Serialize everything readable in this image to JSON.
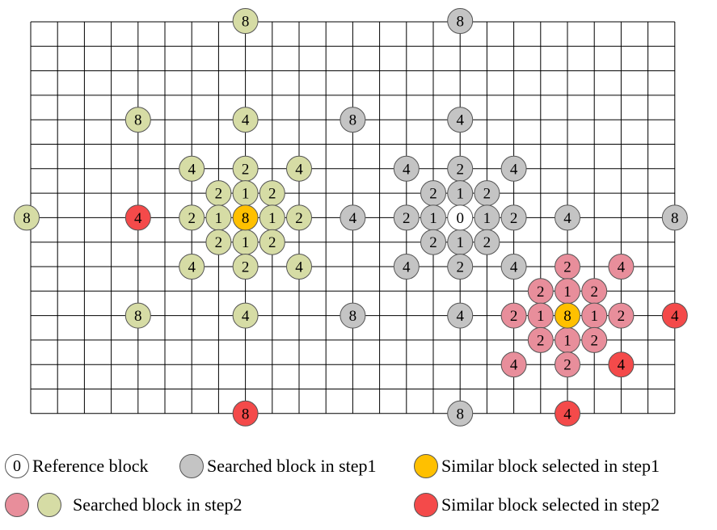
{
  "colors": {
    "reference": "#ffffff",
    "step1_searched": "#c4c4c4",
    "step1_selected": "#ffc000",
    "step2_searched_pink": "#e88e9b",
    "step2_searched_green": "#d6dca5",
    "step2_selected": "#f44a4a",
    "grid_line": "#000000"
  },
  "grid": {
    "columns": 24,
    "rows": 16
  },
  "blocks": {
    "reference": [
      {
        "col": 16,
        "row": 8,
        "label": "0"
      }
    ],
    "step1_searched": [
      {
        "col": 16,
        "row": -0.1,
        "label": "8"
      },
      {
        "col": 16,
        "row": 4,
        "label": "4"
      },
      {
        "col": 12,
        "row": 4,
        "label": "8"
      },
      {
        "col": 14,
        "row": 6,
        "label": "4"
      },
      {
        "col": 16,
        "row": 6,
        "label": "2"
      },
      {
        "col": 18,
        "row": 6,
        "label": "4"
      },
      {
        "col": 15,
        "row": 7,
        "label": "2"
      },
      {
        "col": 16,
        "row": 7,
        "label": "1"
      },
      {
        "col": 17,
        "row": 7,
        "label": "2"
      },
      {
        "col": 12,
        "row": 8,
        "label": "4"
      },
      {
        "col": 14,
        "row": 8,
        "label": "2"
      },
      {
        "col": 15,
        "row": 8,
        "label": "1"
      },
      {
        "col": 17,
        "row": 8,
        "label": "1"
      },
      {
        "col": 18,
        "row": 8,
        "label": "2"
      },
      {
        "col": 20,
        "row": 8,
        "label": "4"
      },
      {
        "col": 24,
        "row": 8,
        "label": "8"
      },
      {
        "col": 15,
        "row": 9,
        "label": "2"
      },
      {
        "col": 16,
        "row": 9,
        "label": "1"
      },
      {
        "col": 17,
        "row": 9,
        "label": "2"
      },
      {
        "col": 14,
        "row": 10,
        "label": "4"
      },
      {
        "col": 16,
        "row": 10,
        "label": "2"
      },
      {
        "col": 18,
        "row": 10,
        "label": "4"
      },
      {
        "col": 12,
        "row": 12,
        "label": "8"
      },
      {
        "col": 16,
        "row": 12,
        "label": "4"
      },
      {
        "col": 16,
        "row": 16,
        "label": "8"
      }
    ],
    "step1_selected": [
      {
        "col": 8,
        "row": 8,
        "label": "8"
      }
    ],
    "step2_searched_green": [
      {
        "col": 8,
        "row": -0.1,
        "label": "8"
      },
      {
        "col": 4,
        "row": 4,
        "label": "8"
      },
      {
        "col": 8,
        "row": 4,
        "label": "4"
      },
      {
        "col": 6,
        "row": 6,
        "label": "4"
      },
      {
        "col": 8,
        "row": 6,
        "label": "2"
      },
      {
        "col": 10,
        "row": 6,
        "label": "4"
      },
      {
        "col": 7,
        "row": 7,
        "label": "2"
      },
      {
        "col": 8,
        "row": 7,
        "label": "1"
      },
      {
        "col": 9,
        "row": 7,
        "label": "2"
      },
      {
        "col": -0.1,
        "row": 8,
        "label": "8"
      },
      {
        "col": 6,
        "row": 8,
        "label": "2"
      },
      {
        "col": 7,
        "row": 8,
        "label": "1"
      },
      {
        "col": 9,
        "row": 8,
        "label": "1"
      },
      {
        "col": 10,
        "row": 8,
        "label": "2"
      },
      {
        "col": 7,
        "row": 9,
        "label": "2"
      },
      {
        "col": 8,
        "row": 9,
        "label": "1"
      },
      {
        "col": 9,
        "row": 9,
        "label": "2"
      },
      {
        "col": 6,
        "row": 10,
        "label": "4"
      },
      {
        "col": 8,
        "row": 10,
        "label": "2"
      },
      {
        "col": 10,
        "row": 10,
        "label": "4"
      },
      {
        "col": 4,
        "row": 12,
        "label": "8"
      },
      {
        "col": 8,
        "row": 12,
        "label": "4"
      }
    ],
    "step2_searched_pink": [
      {
        "col": 20,
        "row": 10,
        "label": "2"
      },
      {
        "col": 19,
        "row": 11,
        "label": "2"
      },
      {
        "col": 20,
        "row": 11,
        "label": "1"
      },
      {
        "col": 21,
        "row": 11,
        "label": "2"
      },
      {
        "col": 18,
        "row": 12,
        "label": "2"
      },
      {
        "col": 19,
        "row": 12,
        "label": "1"
      },
      {
        "col": 21,
        "row": 12,
        "label": "1"
      },
      {
        "col": 22,
        "row": 12,
        "label": "2"
      },
      {
        "col": 19,
        "row": 13,
        "label": "2"
      },
      {
        "col": 20,
        "row": 13,
        "label": "1"
      },
      {
        "col": 21,
        "row": 13,
        "label": "2"
      },
      {
        "col": 18,
        "row": 14,
        "label": "4"
      },
      {
        "col": 20,
        "row": 14,
        "label": "2"
      },
      {
        "col": 22,
        "row": 10,
        "label": "4"
      }
    ],
    "step2_selected": [
      {
        "col": 4,
        "row": 8,
        "label": "4"
      },
      {
        "col": 8,
        "row": 16,
        "label": "8"
      },
      {
        "col": 24,
        "row": 12,
        "label": "4"
      },
      {
        "col": 22,
        "row": 14,
        "label": "4"
      },
      {
        "col": 20,
        "row": 16,
        "label": "4"
      }
    ],
    "step1_selected_second": [
      {
        "col": 20,
        "row": 12,
        "label": "8"
      }
    ]
  },
  "legend": {
    "reference_symbol": "0",
    "reference_label": "Reference block",
    "step1_searched_label": "Searched block in step1",
    "step1_selected_label": "Similar block selected in step1",
    "step2_searched_label": "Searched block in step2",
    "step2_selected_label": "Similar block selected in step2"
  }
}
